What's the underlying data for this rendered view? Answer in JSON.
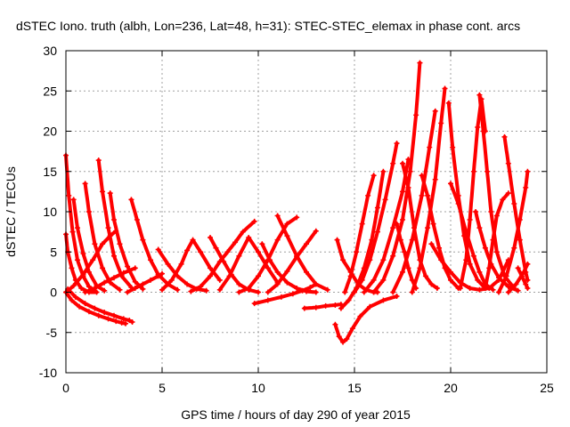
{
  "chart_data": {
    "type": "line",
    "title": "dSTEC Iono. truth (albh, Lon=236, Lat=48, h=31): STEC-STEC_elemax in phase cont. arcs",
    "xlabel": "GPS time / hours of day 290 of year 2015",
    "ylabel": "dSTEC  / TECUs",
    "xlim": [
      0,
      25
    ],
    "ylim": [
      -10,
      30
    ],
    "xticks": [
      "0",
      "5",
      "10",
      "15",
      "20",
      "25"
    ],
    "yticks": [
      "-10",
      "-5",
      "0",
      "5",
      "10",
      "15",
      "20",
      "25",
      "30"
    ],
    "grid": true,
    "legend": "none",
    "marker": "+",
    "color": "#ff0000",
    "series": [
      {
        "x": [
          0.0,
          0.3,
          0.7,
          1.2,
          1.7,
          2.2,
          2.6,
          2.9,
          3.1
        ],
        "values": [
          0.0,
          -1.0,
          -1.8,
          -2.4,
          -2.9,
          -3.3,
          -3.6,
          -3.8,
          -3.9
        ]
      },
      {
        "x": [
          0.1,
          0.5,
          1.0,
          1.5,
          2.0,
          2.5,
          3.0,
          3.3,
          3.45
        ],
        "values": [
          0.4,
          -0.6,
          -1.4,
          -2.0,
          -2.5,
          -2.9,
          -3.3,
          -3.5,
          -3.7
        ]
      },
      {
        "x": [
          0.0,
          0.15,
          0.35,
          0.6,
          0.9,
          1.2,
          1.5
        ],
        "values": [
          17.0,
          12.0,
          7.5,
          4.0,
          2.0,
          0.7,
          0.2
        ]
      },
      {
        "x": [
          0.0,
          0.1,
          0.3,
          0.5,
          0.8,
          1.2,
          1.6
        ],
        "values": [
          7.2,
          5.0,
          3.0,
          1.5,
          0.5,
          0.0,
          0.0
        ]
      },
      {
        "x": [
          0.0,
          0.4,
          0.9,
          1.4,
          1.9,
          2.3,
          2.6
        ],
        "values": [
          0.0,
          0.8,
          2.2,
          4.0,
          6.0,
          7.0,
          7.6
        ]
      },
      {
        "x": [
          0.4,
          0.6,
          0.9,
          1.2,
          1.6,
          2.0
        ],
        "values": [
          11.5,
          8.0,
          4.8,
          2.5,
          0.8,
          0.2
        ]
      },
      {
        "x": [
          1.0,
          1.2,
          1.5,
          1.9,
          2.3,
          2.8
        ],
        "values": [
          13.5,
          10.0,
          6.0,
          3.0,
          1.2,
          0.3
        ]
      },
      {
        "x": [
          1.7,
          1.9,
          2.2,
          2.5,
          2.9,
          3.4
        ],
        "values": [
          16.4,
          12.5,
          8.0,
          4.5,
          2.0,
          0.6
        ]
      },
      {
        "x": [
          2.3,
          2.5,
          2.8,
          3.2,
          3.6,
          4.0
        ],
        "values": [
          12.3,
          9.0,
          6.0,
          3.2,
          1.3,
          0.4
        ]
      },
      {
        "x": [
          3.4,
          3.7,
          4.0,
          4.4,
          4.8,
          5.3,
          5.8
        ],
        "values": [
          11.5,
          9.0,
          6.5,
          4.0,
          2.2,
          1.0,
          0.3
        ]
      },
      {
        "x": [
          1.0,
          1.5,
          2.0,
          2.5,
          3.0,
          3.6
        ],
        "values": [
          0.0,
          0.5,
          1.2,
          1.8,
          2.4,
          3.0
        ]
      },
      {
        "x": [
          3.2,
          3.6,
          4.0,
          4.4,
          4.8,
          5.0
        ],
        "values": [
          0.0,
          0.5,
          1.0,
          1.5,
          2.0,
          2.3
        ]
      },
      {
        "x": [
          4.8,
          5.3,
          5.8,
          6.3,
          6.8,
          7.3
        ],
        "values": [
          5.3,
          3.5,
          2.0,
          1.0,
          0.4,
          0.2
        ]
      },
      {
        "x": [
          5.0,
          5.5,
          6.0,
          6.3,
          6.6,
          7.0,
          7.5,
          8.0
        ],
        "values": [
          0.3,
          1.5,
          3.5,
          5.2,
          6.5,
          5.0,
          3.0,
          1.5
        ]
      },
      {
        "x": [
          7.5,
          7.8,
          8.2,
          8.6,
          9.0,
          9.5,
          10.0
        ],
        "values": [
          6.8,
          5.5,
          3.8,
          2.2,
          1.0,
          0.3,
          0.0
        ]
      },
      {
        "x": [
          8.0,
          8.5,
          9.0,
          9.5,
          10.0,
          10.5,
          11.0
        ],
        "values": [
          0.3,
          2.0,
          4.5,
          6.8,
          5.0,
          3.0,
          1.2
        ]
      },
      {
        "x": [
          6.5,
          7.0,
          7.5,
          8.0,
          8.4,
          8.8,
          9.2,
          9.8
        ],
        "values": [
          0.1,
          0.7,
          2.0,
          3.8,
          5.0,
          6.2,
          7.5,
          8.8
        ]
      },
      {
        "x": [
          9.0,
          9.5,
          10.0,
          10.5,
          11.0,
          11.5,
          12.0
        ],
        "values": [
          0.0,
          0.5,
          2.0,
          4.0,
          6.5,
          8.5,
          9.3
        ]
      },
      {
        "x": [
          10.2,
          10.6,
          11.0,
          11.5,
          12.0,
          12.5,
          13.0
        ],
        "values": [
          6.0,
          4.0,
          2.5,
          1.2,
          0.5,
          0.1,
          0.0
        ]
      },
      {
        "x": [
          9.8,
          10.5,
          11.2,
          11.8,
          12.3,
          12.7,
          13.0
        ],
        "values": [
          -1.4,
          -1.0,
          -0.6,
          -0.2,
          0.2,
          0.6,
          1.0
        ]
      },
      {
        "x": [
          10.5,
          11.0,
          11.5,
          12.0,
          12.5,
          13.0
        ],
        "values": [
          0.0,
          1.0,
          2.6,
          4.4,
          6.0,
          7.6
        ]
      },
      {
        "x": [
          11.0,
          11.5,
          12.0,
          12.5,
          13.0,
          13.6
        ],
        "values": [
          9.5,
          7.0,
          4.5,
          2.5,
          1.0,
          0.3
        ]
      },
      {
        "x": [
          12.4,
          13.0,
          13.5,
          14.0,
          14.3
        ],
        "values": [
          -2.0,
          -1.9,
          -1.7,
          -1.6,
          -1.5
        ]
      },
      {
        "x": [
          14.0,
          14.2,
          14.4,
          14.6,
          14.9,
          15.3,
          15.8,
          16.5,
          17.2
        ],
        "values": [
          -4.0,
          -5.5,
          -6.2,
          -5.8,
          -4.5,
          -3.0,
          -1.8,
          -1.0,
          -0.5
        ]
      },
      {
        "x": [
          14.1,
          14.4,
          14.8,
          15.2,
          15.6,
          16.0,
          16.2
        ],
        "values": [
          6.5,
          4.0,
          2.5,
          1.0,
          0.3,
          0.0,
          0.0
        ]
      },
      {
        "x": [
          14.5,
          14.8,
          15.1,
          15.4,
          15.7,
          16.0
        ],
        "values": [
          0.0,
          2.0,
          5.0,
          8.5,
          12.0,
          14.5
        ]
      },
      {
        "x": [
          14.3,
          14.7,
          15.1,
          15.5,
          15.9,
          16.2,
          16.5
        ],
        "values": [
          -2.0,
          -1.0,
          0.5,
          3.0,
          6.5,
          10.5,
          15.0
        ]
      },
      {
        "x": [
          15.0,
          15.4,
          15.8,
          16.2,
          16.6,
          17.0,
          17.2
        ],
        "values": [
          0.0,
          1.5,
          4.0,
          7.5,
          11.5,
          16.0,
          18.5
        ]
      },
      {
        "x": [
          15.5,
          16.0,
          16.5,
          17.0,
          17.5,
          17.8
        ],
        "values": [
          0.0,
          1.5,
          4.0,
          8.0,
          12.5,
          16.5
        ]
      },
      {
        "x": [
          16.0,
          16.5,
          17.0,
          17.5,
          17.9,
          18.2,
          18.4
        ],
        "values": [
          0.0,
          1.5,
          4.5,
          9.0,
          15.0,
          22.0,
          28.5
        ]
      },
      {
        "x": [
          17.2,
          17.4,
          17.6,
          17.8,
          18.0,
          18.2
        ],
        "values": [
          8.5,
          6.5,
          5.0,
          3.0,
          1.5,
          0.5
        ]
      },
      {
        "x": [
          17.5,
          17.8,
          18.1,
          18.4,
          18.7,
          19.0,
          19.3
        ],
        "values": [
          16.0,
          13.0,
          8.0,
          4.0,
          2.0,
          1.0,
          0.5
        ]
      },
      {
        "x": [
          17.0,
          17.5,
          18.0,
          18.5,
          18.9,
          19.2
        ],
        "values": [
          0.0,
          2.5,
          6.5,
          12.0,
          18.0,
          22.5
        ]
      },
      {
        "x": [
          18.0,
          18.4,
          18.8,
          19.2,
          19.5,
          19.7
        ],
        "values": [
          0.0,
          3.0,
          8.0,
          14.0,
          21.0,
          25.3
        ]
      },
      {
        "x": [
          18.5,
          18.8,
          19.1,
          19.4,
          19.7,
          20.0,
          20.4
        ],
        "values": [
          14.5,
          12.0,
          8.5,
          5.5,
          3.0,
          1.5,
          0.5
        ]
      },
      {
        "x": [
          19.9,
          20.1,
          20.4,
          20.7,
          21.0,
          21.4,
          21.8
        ],
        "values": [
          23.5,
          18.0,
          12.0,
          7.0,
          3.5,
          1.5,
          0.5
        ]
      },
      {
        "x": [
          20.0,
          20.4,
          20.8,
          21.2,
          21.5,
          21.8,
          22.2
        ],
        "values": [
          13.5,
          11.0,
          7.5,
          4.5,
          2.5,
          1.0,
          0.3
        ]
      },
      {
        "x": [
          20.5,
          20.8,
          21.0,
          21.2,
          21.4,
          21.6,
          21.8
        ],
        "values": [
          0.5,
          4.0,
          9.0,
          15.0,
          20.5,
          24.0,
          20.0
        ]
      },
      {
        "x": [
          21.5,
          21.7,
          21.9,
          22.1,
          22.4,
          22.8,
          23.3
        ],
        "values": [
          24.5,
          20.0,
          15.0,
          10.0,
          5.0,
          2.0,
          0.5
        ]
      },
      {
        "x": [
          21.3,
          21.5,
          21.8,
          22.1,
          22.5,
          23.0,
          23.5
        ],
        "values": [
          10.0,
          8.0,
          5.5,
          3.5,
          1.8,
          0.7,
          0.2
        ]
      },
      {
        "x": [
          21.8,
          22.0,
          22.2,
          22.4,
          22.7,
          23.0
        ],
        "values": [
          0.5,
          3.0,
          6.5,
          9.5,
          11.5,
          12.3
        ]
      },
      {
        "x": [
          22.8,
          23.0,
          23.3,
          23.6,
          23.9,
          24.0
        ],
        "values": [
          19.3,
          16.0,
          11.0,
          6.5,
          2.5,
          1.5
        ]
      },
      {
        "x": [
          22.5,
          22.9,
          23.3,
          23.6,
          23.9,
          24.0
        ],
        "values": [
          0.0,
          2.0,
          5.5,
          9.0,
          13.0,
          15.0
        ]
      },
      {
        "x": [
          23.0,
          23.4,
          23.8,
          24.0
        ],
        "values": [
          0.0,
          1.0,
          2.5,
          3.5
        ]
      },
      {
        "x": [
          23.5,
          23.7,
          23.9,
          24.0
        ],
        "values": [
          3.0,
          2.0,
          1.0,
          0.5
        ]
      },
      {
        "x": [
          19.0,
          19.5,
          20.0,
          20.5,
          21.0,
          21.5,
          22.0,
          22.5,
          23.0
        ],
        "values": [
          6.0,
          4.0,
          2.5,
          1.2,
          0.5,
          0.3,
          0.5,
          1.5,
          4.0
        ]
      }
    ]
  }
}
